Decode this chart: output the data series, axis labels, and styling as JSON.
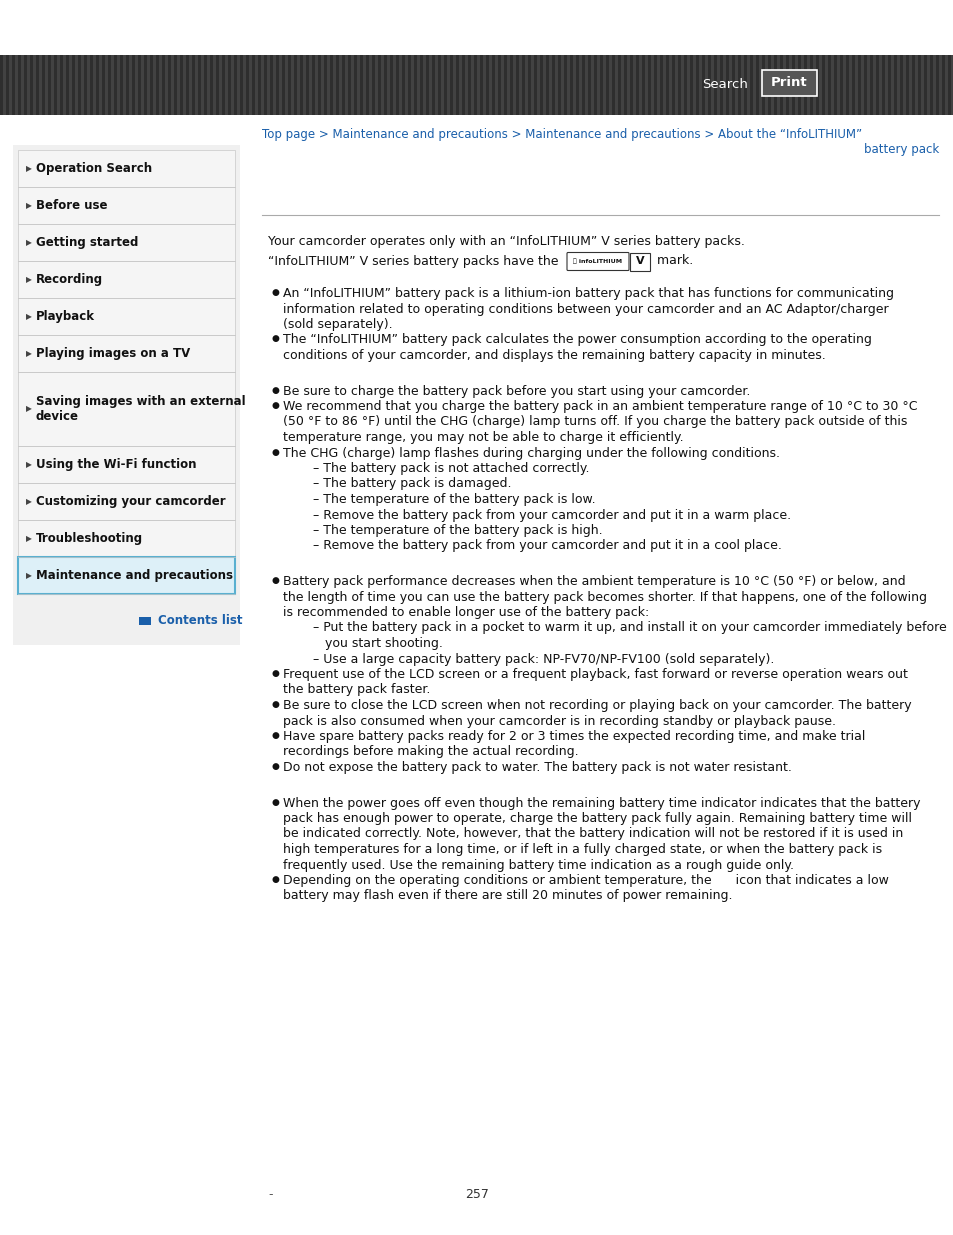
{
  "header_bg": "#3d3d3d",
  "search_text": "Search",
  "print_text": "Print",
  "breadcrumb_line1": "Top page > Maintenance and precautions > Maintenance and precautions > About the “InfoLITHIUM”",
  "breadcrumb_line2": "battery pack",
  "nav_items": [
    "Operation Search",
    "Before use",
    "Getting started",
    "Recording",
    "Playback",
    "Playing images on a TV",
    "Saving images with an external\ndevice",
    "Using the Wi-Fi function",
    "Customizing your camcorder",
    "Troubleshooting",
    "Maintenance and precautions"
  ],
  "nav_active_index": 10,
  "contents_list_text": "Contents list",
  "intro_line1": "Your camcorder operates only with an “InfoLITHIUM” V series battery packs.",
  "intro_line2_pre": "“InfoLITHIUM” V series battery packs have the",
  "intro_line2_post": "mark.",
  "bullet_groups": [
    {
      "items": [
        "An “InfoLITHIUM” battery pack is a lithium-ion battery pack that has functions for communicating\ninformation related to operating conditions between your camcorder and an AC Adaptor/charger\n(sold separately).",
        "The “InfoLITHIUM” battery pack calculates the power consumption according to the operating\nconditions of your camcorder, and displays the remaining battery capacity in minutes."
      ],
      "subitems": {}
    },
    {
      "items": [
        "Be sure to charge the battery pack before you start using your camcorder.",
        "We recommend that you charge the battery pack in an ambient temperature range of 10 °C to 30 °C\n(50 °F to 86 °F) until the CHG (charge) lamp turns off. If you charge the battery pack outside of this\ntemperature range, you may not be able to charge it efficiently.",
        "The CHG (charge) lamp flashes during charging under the following conditions."
      ],
      "subitems": {
        "2": [
          "– The battery pack is not attached correctly.",
          "– The battery pack is damaged.",
          "– The temperature of the battery pack is low.",
          "– Remove the battery pack from your camcorder and put it in a warm place.",
          "– The temperature of the battery pack is high.",
          "– Remove the battery pack from your camcorder and put it in a cool place."
        ]
      }
    },
    {
      "items": [
        "Battery pack performance decreases when the ambient temperature is 10 °C (50 °F) or below, and\nthe length of time you can use the battery pack becomes shorter. If that happens, one of the following\nis recommended to enable longer use of the battery pack:",
        "Frequent use of the LCD screen or a frequent playback, fast forward or reverse operation wears out\nthe battery pack faster.",
        "Be sure to close the LCD screen when not recording or playing back on your camcorder. The battery\npack is also consumed when your camcorder is in recording standby or playback pause.",
        "Have spare battery packs ready for 2 or 3 times the expected recording time, and make trial\nrecordings before making the actual recording.",
        "Do not expose the battery pack to water. The battery pack is not water resistant."
      ],
      "subitems": {
        "0": [
          "– Put the battery pack in a pocket to warm it up, and install it on your camcorder immediately before\n   you start shooting.",
          "– Use a large capacity battery pack: NP-FV70/NP-FV100 (sold separately)."
        ]
      }
    },
    {
      "items": [
        "When the power goes off even though the remaining battery time indicator indicates that the battery\npack has enough power to operate, charge the battery pack fully again. Remaining battery time will\nbe indicated correctly. Note, however, that the battery indication will not be restored if it is used in\nhigh temperatures for a long time, or if left in a fully charged state, or when the battery pack is\nfrequently used. Use the remaining battery time indication as a rough guide only.",
        "Depending on the operating conditions or ambient temperature, the      icon that indicates a low\nbattery may flash even if there are still 20 minutes of power remaining."
      ],
      "subitems": {}
    }
  ],
  "page_number": "257",
  "bg_color": "#ffffff",
  "nav_active_bg": "#ddf0f8",
  "nav_active_border": "#5ab0d0",
  "nav_text_color": "#111111",
  "link_color": "#1a5faa",
  "body_text_color": "#111111",
  "separator_color": "#aaaaaa",
  "header_stripe_dark": "#333333",
  "header_stripe_light": "#4a4a4a"
}
